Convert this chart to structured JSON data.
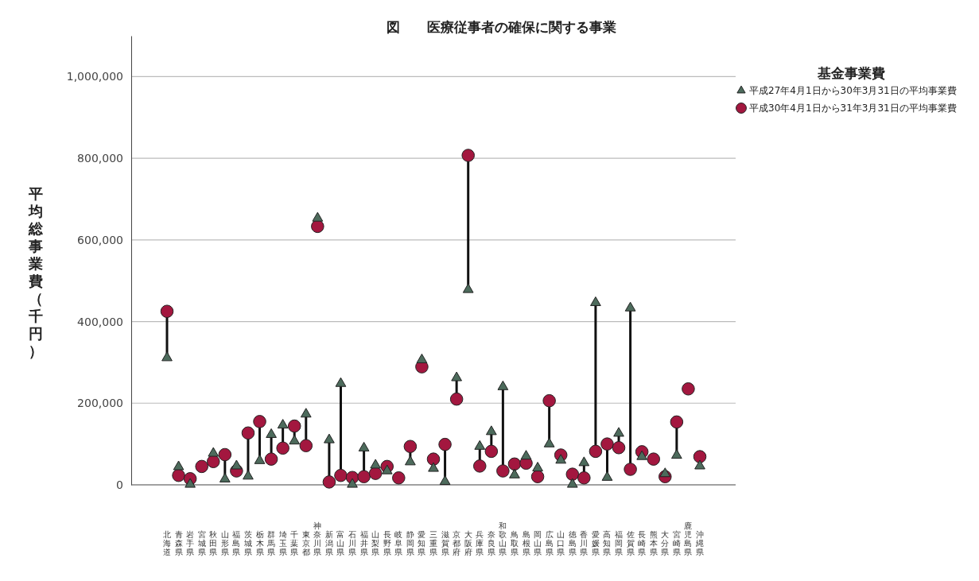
{
  "chart_data": {
    "type": "scatter",
    "title": "図　　医療従事者の確保に関する事業",
    "ylabel": "平均総事業費（千円）",
    "legend_title": "基金事業費",
    "legend": "top right",
    "grid": "y",
    "categories": [
      "北海道",
      "青森県",
      "岩手県",
      "宮城県",
      "秋田県",
      "山形県",
      "福島県",
      "茨城県",
      "栃木県",
      "群馬県",
      "埼玉県",
      "千葉県",
      "東京都",
      "神奈川県",
      "新潟県",
      "富山県",
      "石川県",
      "福井県",
      "山梨県",
      "長野県",
      "岐阜県",
      "静岡県",
      "愛知県",
      "三重県",
      "滋賀県",
      "京都府",
      "大阪府",
      "兵庫県",
      "奈良県",
      "和歌山県",
      "鳥取県",
      "島根県",
      "岡山県",
      "広島県",
      "山口県",
      "徳島県",
      "香川県",
      "愛媛県",
      "高知県",
      "福岡県",
      "佐賀県",
      "長崎県",
      "熊本県",
      "大分県",
      "宮崎県",
      "鹿児島県",
      "沖縄県"
    ],
    "ylim": [
      0,
      1100000
    ],
    "yticks": [
      {
        "value": 0,
        "label": "0"
      },
      {
        "value": 200000,
        "label": "200,000"
      },
      {
        "value": 400000,
        "label": "400,000"
      },
      {
        "value": 600000,
        "label": "600,000"
      },
      {
        "value": 800000,
        "label": "800,000"
      },
      {
        "value": 1000000,
        "label": "1,000,000"
      }
    ],
    "series": [
      {
        "name": "平成27年4月1日から30年3月31日の平均事業費",
        "color": "#4d6b5c",
        "marker": "triangle",
        "values": [
          315000,
          48000,
          5000,
          null,
          81000,
          18000,
          50000,
          25000,
          63000,
          127000,
          150000,
          111000,
          177000,
          657000,
          114000,
          252000,
          5000,
          94000,
          52000,
          38000,
          null,
          60000,
          310000,
          44000,
          12000,
          266000,
          482000,
          98000,
          134000,
          244000,
          28000,
          74000,
          45000,
          104000,
          64000,
          5000,
          58000,
          450000,
          22000,
          130000,
          437000,
          73000,
          null,
          31000,
          76000,
          null,
          50000
        ]
      },
      {
        "name": "平成30年4月1日から31年3月31日の平均事業費",
        "color": "#a3173f",
        "marker": "circle",
        "values": [
          425000,
          23000,
          15000,
          45000,
          57000,
          74000,
          34000,
          127000,
          155000,
          63000,
          90000,
          144000,
          96000,
          633000,
          7000,
          23000,
          18000,
          20000,
          28000,
          45000,
          17000,
          94000,
          289000,
          63000,
          99000,
          210000,
          807000,
          46000,
          82000,
          34000,
          51000,
          53000,
          20000,
          206000,
          73000,
          26000,
          17000,
          82000,
          100000,
          91000,
          38000,
          81000,
          63000,
          20000,
          154000,
          235000,
          69000
        ]
      }
    ]
  }
}
